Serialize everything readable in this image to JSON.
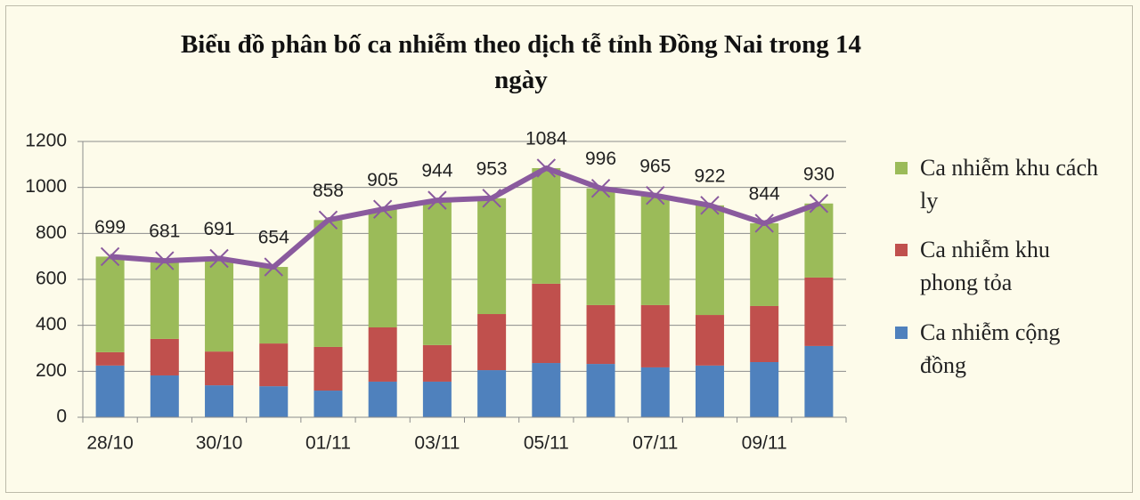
{
  "chart_data": {
    "type": "stacked-bar-line",
    "title": "Biểu đồ phân bố ca nhiễm theo dịch tễ tỉnh Đồng Nai trong 14 ngày",
    "categories": [
      "28/10",
      null,
      "30/10",
      null,
      "01/11",
      null,
      "03/11",
      null,
      "05/11",
      null,
      "07/11",
      null,
      "09/11",
      null
    ],
    "series": [
      {
        "name": "Ca nhiễm cộng đồng",
        "color": "#4f81bd",
        "values": [
          225,
          182,
          139,
          135,
          116,
          155,
          155,
          205,
          236,
          232,
          217,
          225,
          240,
          310
        ]
      },
      {
        "name": "Ca nhiễm khu phong tỏa",
        "color": "#c0504d",
        "values": [
          58,
          159,
          147,
          186,
          190,
          236,
          159,
          244,
          345,
          256,
          271,
          220,
          244,
          298
        ]
      },
      {
        "name": "Ca nhiễm khu cách ly",
        "color": "#9bbb59",
        "values": [
          416,
          340,
          405,
          333,
          552,
          514,
          630,
          504,
          503,
          508,
          477,
          477,
          360,
          322
        ]
      }
    ],
    "line": {
      "color": "#8a5a9e",
      "values": [
        699,
        681,
        691,
        654,
        858,
        905,
        944,
        953,
        1084,
        996,
        965,
        922,
        844,
        930
      ]
    },
    "ylim": [
      0,
      1200
    ],
    "yticks": [
      0,
      200,
      400,
      600,
      800,
      1000,
      1200
    ],
    "grid": true
  }
}
